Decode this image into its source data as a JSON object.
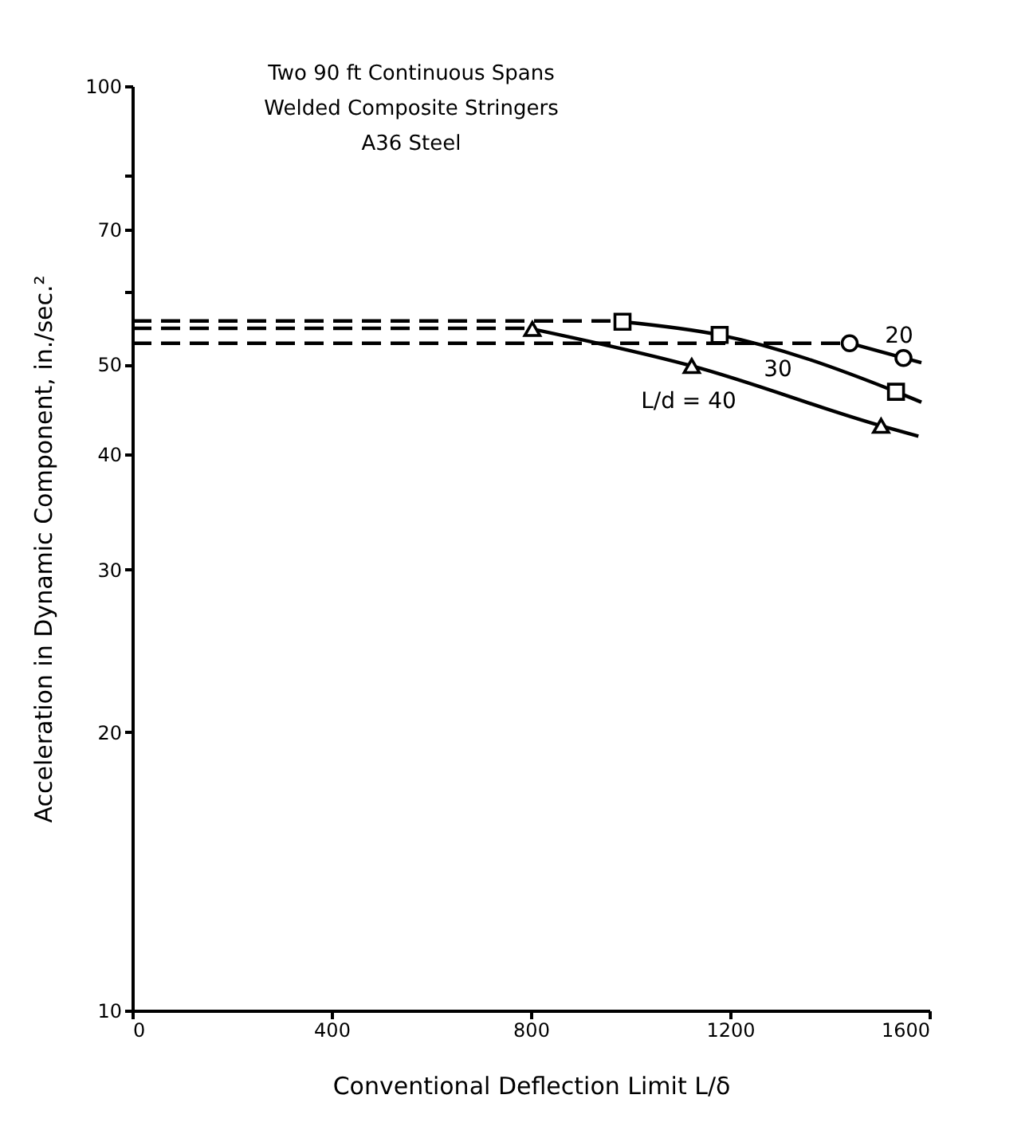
{
  "chart_data": {
    "type": "line",
    "xlabel": "Conventional Deflection Limit L/δ",
    "ylabel": "Acceleration in Dynamic Component, in./sec.²",
    "xlim": [
      0,
      1600
    ],
    "xticks": [
      0,
      400,
      800,
      1200,
      1600
    ],
    "ylim": [
      10,
      100
    ],
    "yticks": [
      10,
      20,
      30,
      40,
      50,
      {
        "value": 60,
        "label": null
      },
      70,
      {
        "value": 80,
        "label": null
      },
      100
    ],
    "log": "y",
    "grid": false,
    "series": [
      {
        "line_style": "dashed",
        "marker": "none",
        "color": "#000000",
        "x": [
          0,
          1440
        ],
        "values": [
          52.7,
          52.7
        ]
      },
      {
        "line_style": "solid",
        "marker": "none",
        "color": "#000000",
        "x": [
          1440,
          1548,
          1584
        ],
        "values": [
          52.7,
          50.8,
          50.2
        ]
      },
      {
        "type": "scatter",
        "marker": "circle",
        "color": "#000000",
        "x": [
          1440,
          1548
        ],
        "values": [
          52.7,
          50.8
        ]
      },
      {
        "line_style": "dashed",
        "marker": "none",
        "color": "#000000",
        "x": [
          0,
          984
        ],
        "values": [
          55.7,
          55.7
        ]
      },
      {
        "line_style": "solid",
        "marker": "none",
        "color": "#000000",
        "x": [
          984,
          1179,
          1533,
          1584
        ],
        "values": [
          55.6,
          53.8,
          46.7,
          45.5
        ]
      },
      {
        "type": "scatter",
        "marker": "square",
        "color": "#000000",
        "x": [
          984,
          1179,
          1533
        ],
        "values": [
          55.6,
          53.8,
          46.7
        ]
      },
      {
        "line_style": "dashed",
        "marker": "none",
        "color": "#000000",
        "x": [
          0,
          803
        ],
        "values": [
          54.7,
          54.7
        ]
      },
      {
        "line_style": "solid",
        "marker": "none",
        "color": "#000000",
        "x": [
          803,
          1123,
          1503,
          1578
        ],
        "values": [
          54.6,
          49.8,
          42.9,
          41.8
        ]
      },
      {
        "type": "scatter",
        "marker": "triangle",
        "color": "#000000",
        "x": [
          803,
          1123,
          1503
        ],
        "values": [
          54.6,
          49.8,
          42.9
        ]
      }
    ],
    "annotations": [
      "Two 90 ft Continuous Spans",
      "Welded Composite Stringers",
      "A36 Steel",
      "20",
      "30",
      "L/d = 40"
    ]
  }
}
